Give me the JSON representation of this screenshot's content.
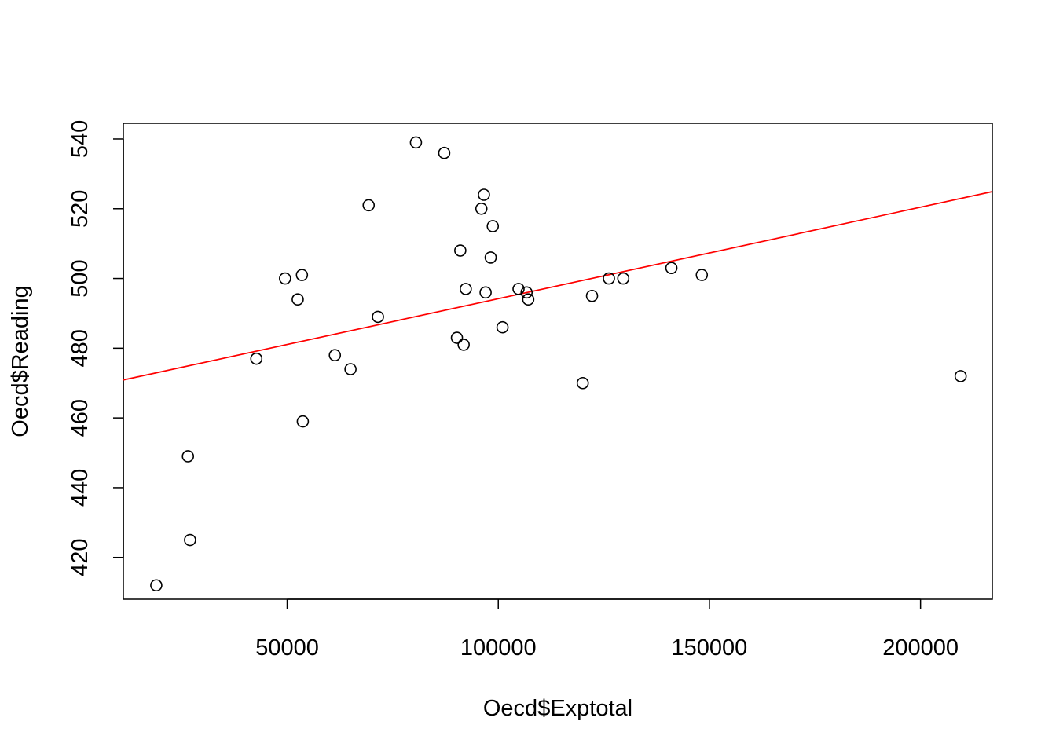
{
  "chart_data": {
    "type": "scatter",
    "title": "",
    "xlabel": "Oecd$Exptotal",
    "ylabel": "Oecd$Reading",
    "xlim": [
      11200,
      217000
    ],
    "ylim": [
      408,
      544.5
    ],
    "x_ticks": [
      50000,
      100000,
      150000,
      200000
    ],
    "x_tick_labels": [
      "50000",
      "100000",
      "150000",
      "200000"
    ],
    "y_ticks": [
      420,
      440,
      460,
      480,
      500,
      520,
      540
    ],
    "y_tick_labels": [
      "420",
      "440",
      "460",
      "480",
      "500",
      "520",
      "540"
    ],
    "grid": false,
    "legend": "none",
    "points": [
      {
        "x": 19000,
        "y": 412
      },
      {
        "x": 26500,
        "y": 449
      },
      {
        "x": 27000,
        "y": 425
      },
      {
        "x": 42700,
        "y": 477
      },
      {
        "x": 49500,
        "y": 500
      },
      {
        "x": 52500,
        "y": 494
      },
      {
        "x": 53500,
        "y": 501
      },
      {
        "x": 53700,
        "y": 459
      },
      {
        "x": 61300,
        "y": 478
      },
      {
        "x": 65000,
        "y": 474
      },
      {
        "x": 69300,
        "y": 521
      },
      {
        "x": 71500,
        "y": 489
      },
      {
        "x": 80500,
        "y": 539
      },
      {
        "x": 87200,
        "y": 536
      },
      {
        "x": 90200,
        "y": 483
      },
      {
        "x": 91000,
        "y": 508
      },
      {
        "x": 91800,
        "y": 481
      },
      {
        "x": 92300,
        "y": 497
      },
      {
        "x": 96000,
        "y": 520
      },
      {
        "x": 96600,
        "y": 524
      },
      {
        "x": 97000,
        "y": 496
      },
      {
        "x": 98200,
        "y": 506
      },
      {
        "x": 98700,
        "y": 515
      },
      {
        "x": 101000,
        "y": 486
      },
      {
        "x": 104800,
        "y": 497
      },
      {
        "x": 106700,
        "y": 496
      },
      {
        "x": 107100,
        "y": 494
      },
      {
        "x": 120000,
        "y": 470
      },
      {
        "x": 122200,
        "y": 495
      },
      {
        "x": 126200,
        "y": 500
      },
      {
        "x": 129600,
        "y": 500
      },
      {
        "x": 141000,
        "y": 503
      },
      {
        "x": 148200,
        "y": 501
      },
      {
        "x": 209500,
        "y": 472
      }
    ],
    "regression_line": {
      "color": "#ff0000",
      "from": {
        "x": 11200,
        "y": 470.9
      },
      "to": {
        "x": 217000,
        "y": 524.9
      }
    },
    "point_style": {
      "stroke": "#000000",
      "fill": "none"
    }
  }
}
